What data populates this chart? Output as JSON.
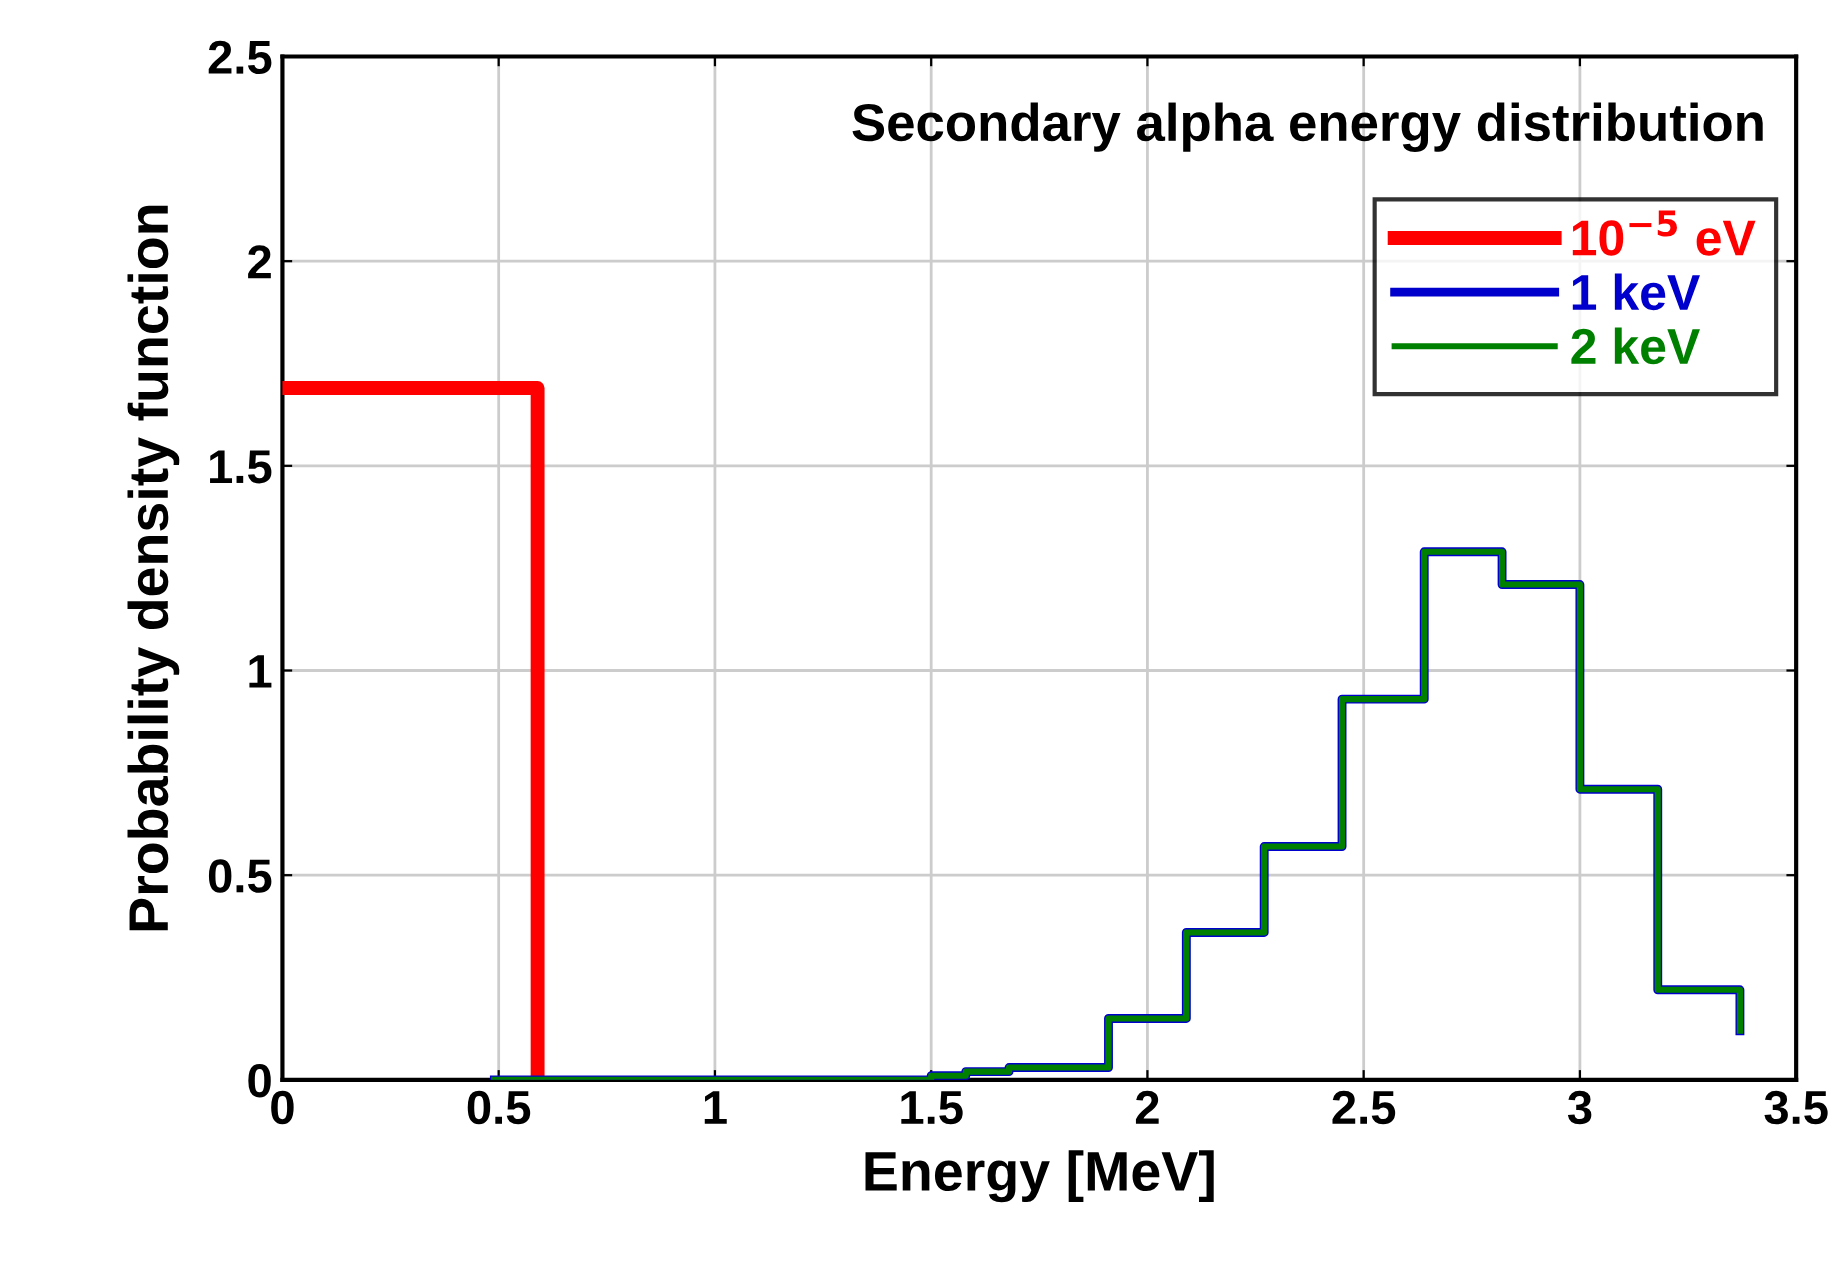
{
  "chart_data": {
    "type": "step",
    "title": "Secondary alpha energy distribution",
    "xlabel": "Energy [MeV]",
    "ylabel": "Probability density function",
    "series": [
      {
        "name": "10$^{−5}$ eV",
        "color": "#ff0000",
        "x": [
          0,
          0.59
        ],
        "values": [
          1.69,
          0
        ]
      },
      {
        "name": "1 keV",
        "color": "#0000cc",
        "x": [
          0.49,
          1.5,
          1.58,
          1.68,
          1.77,
          1.91,
          2.09,
          2.27,
          2.45,
          2.64,
          2.82,
          3.0,
          3.18,
          3.37
        ],
        "values": [
          0,
          0.01,
          0.02,
          0.03,
          0.03,
          0.15,
          0.36,
          0.57,
          0.93,
          1.29,
          1.21,
          0.71,
          0.22,
          0.12
        ]
      },
      {
        "name": "2 keV",
        "color": "#008000",
        "x": [
          0.49,
          1.5,
          1.58,
          1.68,
          1.77,
          1.91,
          2.09,
          2.27,
          2.45,
          2.64,
          2.82,
          3.0,
          3.18,
          3.37
        ],
        "values": [
          0,
          0.01,
          0.02,
          0.03,
          0.03,
          0.15,
          0.36,
          0.57,
          0.93,
          1.29,
          1.21,
          0.71,
          0.22,
          0.12
        ]
      }
    ],
    "xlim": [
      0,
      3.5
    ],
    "xticks": [
      0,
      0.5,
      1,
      1.5,
      2,
      2.5,
      3,
      3.5
    ],
    "ylim": [
      0,
      2.5
    ],
    "yticks": [
      0,
      0.5,
      1,
      1.5,
      2,
      2.5
    ],
    "grid": true,
    "legend": "top right"
  }
}
